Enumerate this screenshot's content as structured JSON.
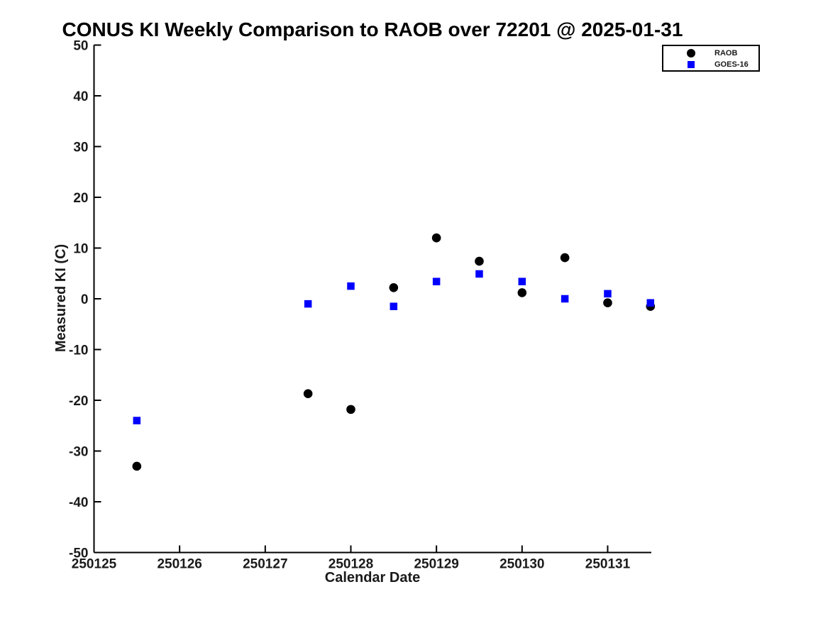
{
  "chart_data": {
    "type": "scatter",
    "title": "CONUS KI Weekly Comparison to RAOB over 72201 @ 2025-01-31",
    "xlabel": "Calendar Date",
    "ylabel": "Measured KI (C)",
    "xlim": [
      250125,
      250131.51
    ],
    "ylim": [
      -50,
      50
    ],
    "xticks": [
      250125,
      250126,
      250127,
      250128,
      250129,
      250130,
      250131
    ],
    "yticks": [
      50,
      40,
      30,
      20,
      10,
      0,
      -10,
      -20,
      -30,
      -40,
      -50
    ],
    "grid": false,
    "legend_position": "top-right",
    "series": [
      {
        "name": "RAOB",
        "marker": "circle",
        "color": "#000000",
        "points": [
          [
            250125.5,
            -33.0
          ],
          [
            250127.5,
            -18.7
          ],
          [
            250128.0,
            -21.8
          ],
          [
            250128.5,
            2.2
          ],
          [
            250129.0,
            12.0
          ],
          [
            250129.5,
            7.4
          ],
          [
            250130.0,
            1.2
          ],
          [
            250130.5,
            8.1
          ],
          [
            250131.0,
            -0.8
          ],
          [
            250131.5,
            -1.5
          ]
        ]
      },
      {
        "name": "GOES-16",
        "marker": "square",
        "color": "#0000ff",
        "points": [
          [
            250125.5,
            -24.0
          ],
          [
            250127.5,
            -1.0
          ],
          [
            250128.0,
            2.5
          ],
          [
            250128.5,
            -1.5
          ],
          [
            250129.0,
            3.4
          ],
          [
            250129.5,
            4.9
          ],
          [
            250130.0,
            3.4
          ],
          [
            250130.5,
            0.0
          ],
          [
            250131.0,
            1.0
          ],
          [
            250131.5,
            -0.8
          ]
        ]
      }
    ]
  }
}
